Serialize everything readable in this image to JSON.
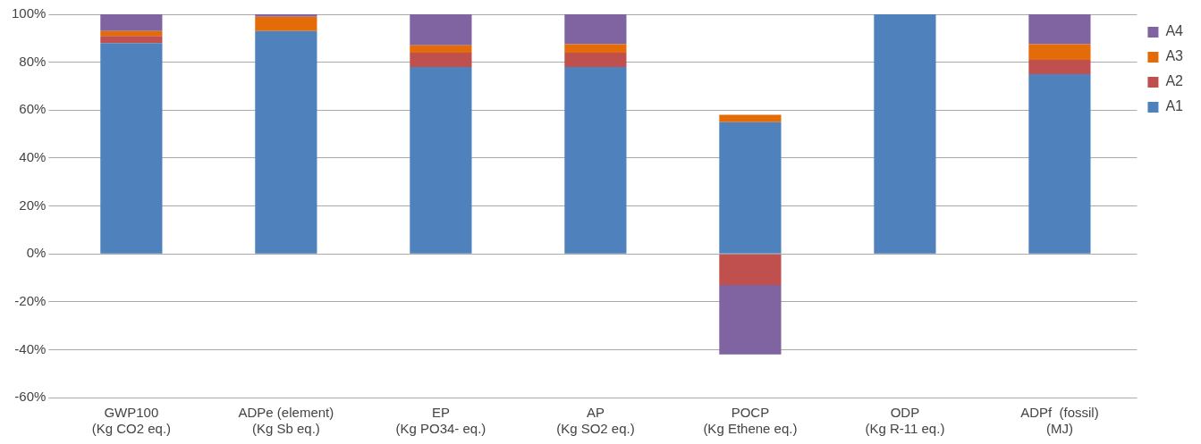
{
  "chart_data": {
    "type": "bar",
    "stacked": true,
    "categories": [
      "GWP100\n(Kg CO2 eq.)",
      "ADPe (element)\n(Kg Sb eq.)",
      "EP\n(Kg PO34- eq.)",
      "AP\n(Kg SO2 eq.)",
      "POCP\n(Kg Ethene eq.)",
      "ODP\n(Kg R-11 eq.)",
      "ADPf  (fossil)\n(MJ)"
    ],
    "series": [
      {
        "name": "A1",
        "color": "#4f81bd",
        "values": [
          88,
          93,
          78,
          78,
          55,
          100,
          75
        ]
      },
      {
        "name": "A2",
        "color": "#c0504d",
        "values": [
          3,
          0,
          6,
          6,
          -13,
          0,
          6
        ]
      },
      {
        "name": "A3",
        "color": "#e36c09",
        "values": [
          2,
          6,
          3,
          3.5,
          3,
          0,
          6.5
        ]
      },
      {
        "name": "A4",
        "color": "#8064a2",
        "values": [
          7,
          1,
          13,
          12.5,
          -29,
          0,
          12.5
        ]
      }
    ],
    "ylim": [
      -60,
      100
    ],
    "yticks": [
      {
        "value": -60,
        "label": "-60%"
      },
      {
        "value": -40,
        "label": "-40%"
      },
      {
        "value": -20,
        "label": "-20%"
      },
      {
        "value": 0,
        "label": "0%"
      },
      {
        "value": 20,
        "label": "20%"
      },
      {
        "value": 40,
        "label": "40%"
      },
      {
        "value": 60,
        "label": "60%"
      },
      {
        "value": 80,
        "label": "80%"
      },
      {
        "value": 100,
        "label": "100%"
      }
    ],
    "grid": "y",
    "legend": "right"
  }
}
